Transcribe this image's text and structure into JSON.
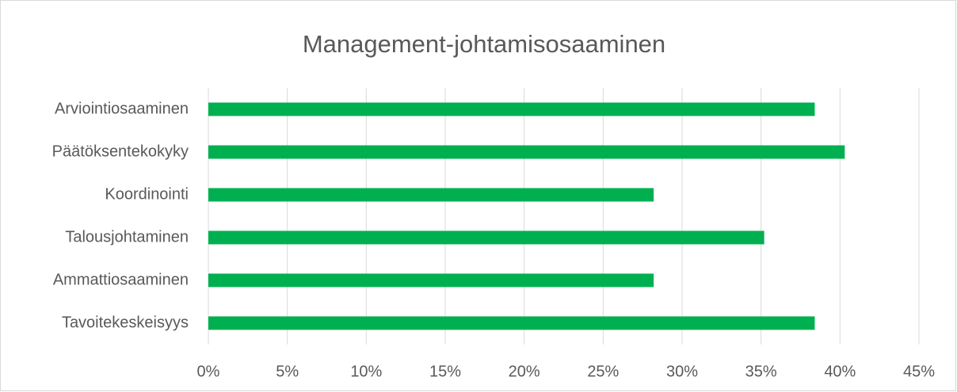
{
  "chart_data": {
    "type": "hbar",
    "title": "Management-johtamisosaaminen",
    "categories": [
      "Arviointiosaaminen",
      "Päätöksentekokyky",
      "Koordinointi",
      "Talousjohtaminen",
      "Ammattiosaaminen",
      "Tavoitekeskeisyys"
    ],
    "values": [
      38.4,
      40.3,
      28.2,
      35.2,
      28.2,
      38.4
    ],
    "color": "#00b050",
    "xlim": [
      0,
      45
    ],
    "xticks": [
      {
        "value": 0,
        "label": "0%"
      },
      {
        "value": 5,
        "label": "5%"
      },
      {
        "value": 10,
        "label": "10%"
      },
      {
        "value": 15,
        "label": "15%"
      },
      {
        "value": 20,
        "label": "20%"
      },
      {
        "value": 25,
        "label": "25%"
      },
      {
        "value": 30,
        "label": "30%"
      },
      {
        "value": 35,
        "label": "35%"
      },
      {
        "value": 40,
        "label": "40%"
      },
      {
        "value": 45,
        "label": "45%"
      }
    ],
    "grid": true
  }
}
